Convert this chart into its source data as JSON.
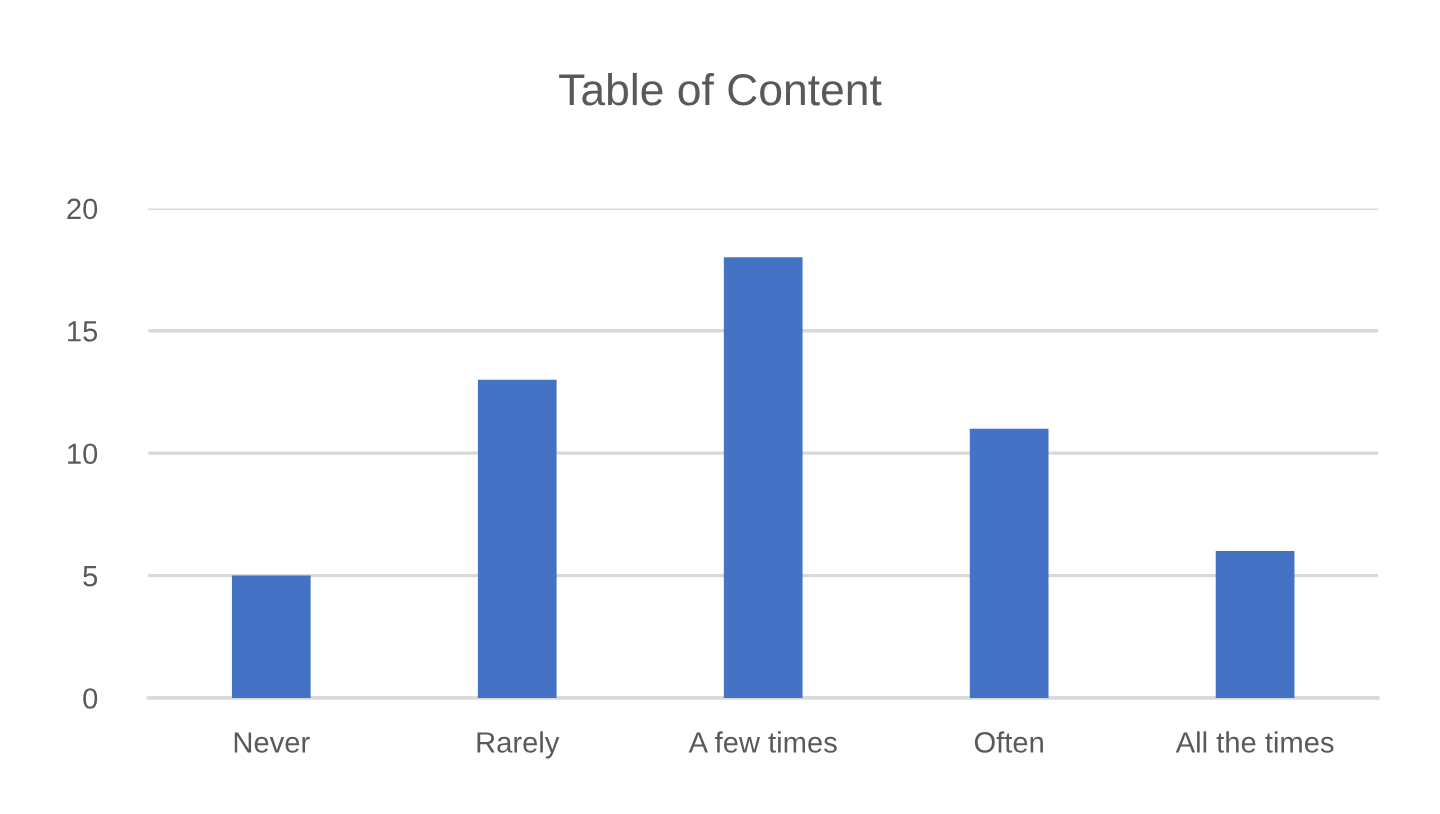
{
  "chart_data": {
    "type": "bar",
    "title": "Table of Content",
    "categories": [
      "Never",
      "Rarely",
      "A few times",
      "Often",
      "All the times"
    ],
    "values": [
      5,
      13,
      18,
      11,
      6
    ],
    "color": "#4472c4",
    "ylim": [
      0,
      20
    ],
    "yticks": [
      0,
      5,
      10,
      15,
      20
    ],
    "grid": "y",
    "legend": false
  }
}
